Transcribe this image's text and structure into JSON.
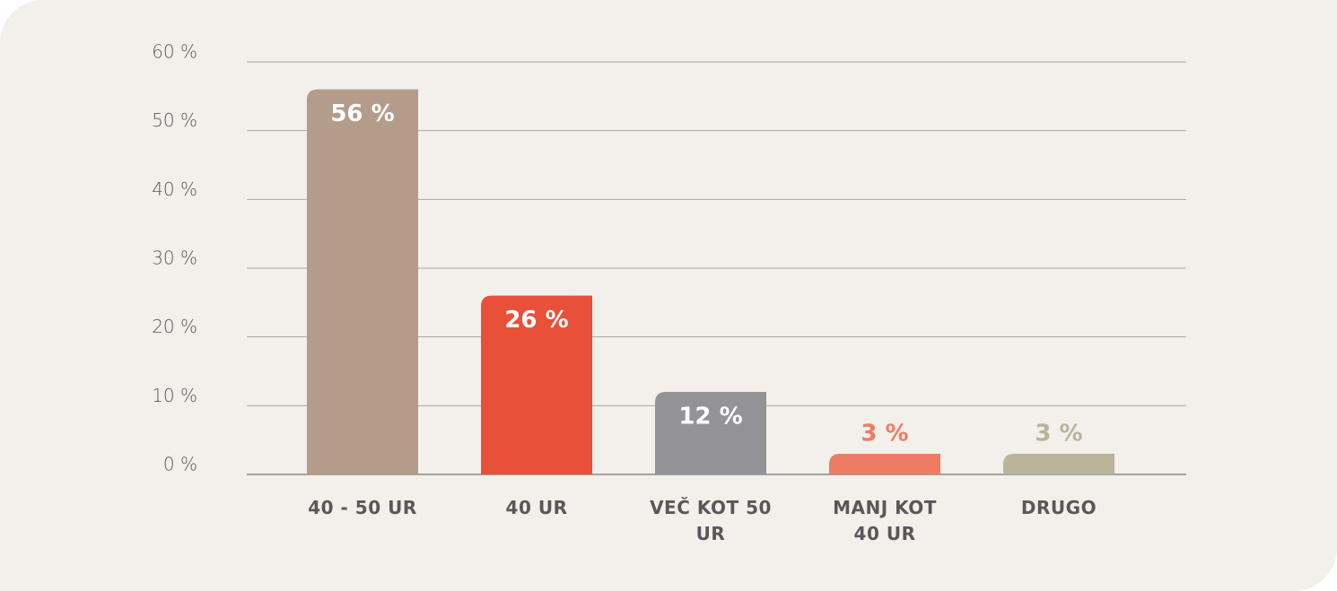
{
  "chart_data": {
    "type": "bar",
    "categories": [
      "40 - 50 UR",
      "40 UR",
      "VEČ KOT 50 UR",
      "MANJ KOT 40 UR",
      "DRUGO"
    ],
    "values": [
      56,
      26,
      12,
      3,
      3
    ],
    "value_labels": [
      "56 %",
      "26 %",
      "12 %",
      "3 %",
      "3 %"
    ],
    "colors": [
      "#b39c8a",
      "#e8503a",
      "#939398",
      "#ee7c62",
      "#b9b49a"
    ],
    "ylim": [
      0,
      60
    ],
    "yticks": [
      {
        "value": 0,
        "label": "0 %"
      },
      {
        "value": 10,
        "label": "10 %"
      },
      {
        "value": 20,
        "label": "20 %"
      },
      {
        "value": 30,
        "label": "30 %"
      },
      {
        "value": 40,
        "label": "40 %"
      },
      {
        "value": 50,
        "label": "50 %"
      },
      {
        "value": 60,
        "label": "60 %"
      }
    ],
    "grid": true
  }
}
